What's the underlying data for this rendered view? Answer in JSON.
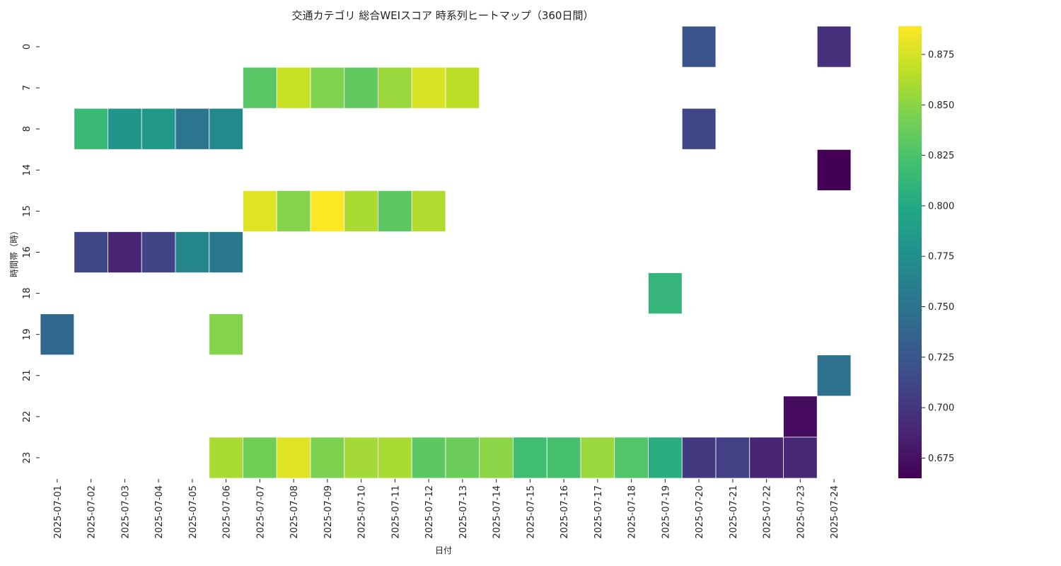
{
  "chart_data": {
    "type": "heatmap",
    "title": "交通カテゴリ 総合WEIスコア 時系列ヒートマップ（360日間）",
    "xlabel": "日付",
    "ylabel": "時間帯（時）",
    "x": [
      "2025-07-01",
      "2025-07-02",
      "2025-07-03",
      "2025-07-04",
      "2025-07-05",
      "2025-07-06",
      "2025-07-07",
      "2025-07-08",
      "2025-07-09",
      "2025-07-10",
      "2025-07-11",
      "2025-07-12",
      "2025-07-13",
      "2025-07-14",
      "2025-07-15",
      "2025-07-16",
      "2025-07-17",
      "2025-07-18",
      "2025-07-19",
      "2025-07-20",
      "2025-07-21",
      "2025-07-22",
      "2025-07-23",
      "2025-07-24"
    ],
    "y": [
      "0",
      "7",
      "8",
      "14",
      "15",
      "16",
      "18",
      "19",
      "21",
      "22",
      "23"
    ],
    "colorscale": "viridis",
    "vmin": 0.665,
    "vmax": 0.889,
    "colorbar_ticks": [
      "0.675",
      "0.700",
      "0.725",
      "0.750",
      "0.775",
      "0.800",
      "0.825",
      "0.850",
      "0.875"
    ],
    "values": [
      [
        null,
        null,
        null,
        null,
        null,
        null,
        null,
        null,
        null,
        null,
        null,
        null,
        null,
        null,
        null,
        null,
        null,
        null,
        null,
        0.722,
        null,
        null,
        null,
        0.695
      ],
      [
        null,
        null,
        null,
        null,
        null,
        null,
        0.83,
        0.87,
        0.846,
        0.834,
        0.855,
        0.876,
        0.866,
        null,
        null,
        null,
        null,
        null,
        null,
        null,
        null,
        null,
        null,
        null
      ],
      [
        null,
        0.815,
        0.78,
        0.785,
        0.752,
        0.77,
        null,
        null,
        null,
        null,
        null,
        null,
        null,
        null,
        null,
        null,
        null,
        null,
        null,
        0.712,
        null,
        null,
        null,
        null
      ],
      [
        null,
        null,
        null,
        null,
        null,
        null,
        null,
        null,
        null,
        null,
        null,
        null,
        null,
        null,
        null,
        null,
        null,
        null,
        null,
        null,
        null,
        null,
        null,
        0.665
      ],
      [
        null,
        null,
        null,
        null,
        null,
        null,
        0.878,
        0.848,
        0.889,
        0.86,
        0.832,
        0.862,
        null,
        null,
        null,
        null,
        null,
        null,
        null,
        null,
        null,
        null,
        null,
        null
      ],
      [
        null,
        0.712,
        0.688,
        0.71,
        0.768,
        0.755,
        null,
        null,
        null,
        null,
        null,
        null,
        null,
        null,
        null,
        null,
        null,
        null,
        null,
        null,
        null,
        null,
        null,
        null
      ],
      [
        null,
        null,
        null,
        null,
        null,
        null,
        null,
        null,
        null,
        null,
        null,
        null,
        null,
        null,
        null,
        null,
        null,
        null,
        0.812,
        null,
        null,
        null,
        null,
        null
      ],
      [
        0.74,
        null,
        null,
        null,
        null,
        0.848,
        null,
        null,
        null,
        null,
        null,
        null,
        null,
        null,
        null,
        null,
        null,
        null,
        null,
        null,
        null,
        null,
        null,
        null
      ],
      [
        null,
        null,
        null,
        null,
        null,
        null,
        null,
        null,
        null,
        null,
        null,
        null,
        null,
        null,
        null,
        null,
        null,
        null,
        null,
        null,
        null,
        null,
        null,
        0.748
      ],
      [
        null,
        null,
        null,
        null,
        null,
        null,
        null,
        null,
        null,
        null,
        null,
        null,
        null,
        null,
        null,
        null,
        null,
        null,
        null,
        null,
        null,
        null,
        0.672,
        null
      ],
      [
        null,
        null,
        null,
        null,
        null,
        0.86,
        0.84,
        0.878,
        0.845,
        0.858,
        0.86,
        0.832,
        0.838,
        0.85,
        0.82,
        0.823,
        0.855,
        0.828,
        0.805,
        0.702,
        0.708,
        0.688,
        0.69,
        null
      ]
    ]
  }
}
